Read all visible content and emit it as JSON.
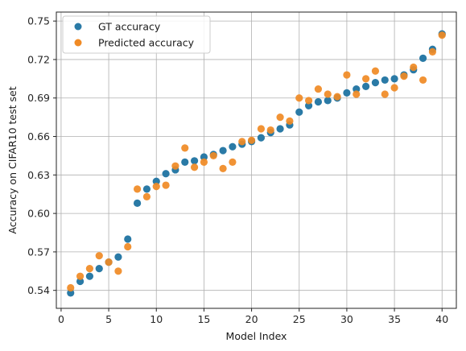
{
  "chart_data": {
    "type": "scatter",
    "title": "",
    "xlabel": "Model Index",
    "ylabel": "Accuracy on CIFAR10 test set",
    "xlim": [
      -0.5,
      41.5
    ],
    "ylim": [
      0.526,
      0.757
    ],
    "xticks": [
      0,
      5,
      10,
      15,
      20,
      25,
      30,
      35,
      40
    ],
    "yticks": [
      0.54,
      0.57,
      0.6,
      0.63,
      0.66,
      0.69,
      0.72,
      0.75
    ],
    "xtick_labels": [
      "0",
      "5",
      "10",
      "15",
      "20",
      "25",
      "30",
      "35",
      "40"
    ],
    "ytick_labels": [
      "0.54",
      "0.57",
      "0.60",
      "0.63",
      "0.66",
      "0.69",
      "0.72",
      "0.75"
    ],
    "grid": true,
    "legend_position": "top-left",
    "series": [
      {
        "name": "GT accuracy",
        "color": "#2a7aa6",
        "x": [
          1,
          2,
          3,
          4,
          5,
          6,
          7,
          8,
          9,
          10,
          11,
          12,
          13,
          14,
          15,
          16,
          17,
          18,
          19,
          20,
          21,
          22,
          23,
          24,
          25,
          26,
          27,
          28,
          29,
          30,
          31,
          32,
          33,
          34,
          35,
          36,
          37,
          38,
          39,
          40
        ],
        "y": [
          0.538,
          0.547,
          0.551,
          0.557,
          0.562,
          0.566,
          0.58,
          0.608,
          0.619,
          0.625,
          0.631,
          0.634,
          0.64,
          0.641,
          0.644,
          0.646,
          0.649,
          0.652,
          0.654,
          0.656,
          0.659,
          0.663,
          0.666,
          0.669,
          0.679,
          0.684,
          0.687,
          0.688,
          0.69,
          0.694,
          0.697,
          0.699,
          0.702,
          0.704,
          0.705,
          0.708,
          0.712,
          0.721,
          0.728,
          0.74
        ]
      },
      {
        "name": "Predicted accuracy",
        "color": "#f08a24",
        "x": [
          1,
          2,
          3,
          4,
          5,
          6,
          7,
          8,
          9,
          10,
          11,
          12,
          13,
          14,
          15,
          16,
          17,
          18,
          19,
          20,
          21,
          22,
          23,
          24,
          25,
          26,
          27,
          28,
          29,
          30,
          31,
          32,
          33,
          34,
          35,
          36,
          37,
          38,
          39,
          40
        ],
        "y": [
          0.542,
          0.551,
          0.557,
          0.567,
          0.562,
          0.555,
          0.574,
          0.619,
          0.613,
          0.621,
          0.622,
          0.637,
          0.651,
          0.636,
          0.64,
          0.645,
          0.635,
          0.64,
          0.656,
          0.657,
          0.666,
          0.665,
          0.675,
          0.672,
          0.69,
          0.688,
          0.697,
          0.693,
          0.691,
          0.708,
          0.693,
          0.705,
          0.711,
          0.693,
          0.698,
          0.707,
          0.714,
          0.704,
          0.726,
          0.739
        ]
      }
    ]
  }
}
